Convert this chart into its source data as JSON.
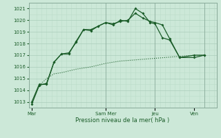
{
  "title": "",
  "xlabel": "Pression niveau de la mer( hPa )",
  "bg_color": "#cce8d8",
  "grid_color_major": "#aacebb",
  "grid_color_minor": "#bbddc8",
  "line_color": "#1a5c28",
  "ylim": [
    1012.5,
    1021.5
  ],
  "yticks": [
    1013,
    1014,
    1015,
    1016,
    1017,
    1018,
    1019,
    1020,
    1021
  ],
  "day_labels": [
    "Mar",
    "Sam Mer",
    "Jeu",
    "Ven"
  ],
  "day_positions": [
    0,
    120,
    200,
    280
  ],
  "xmin": -5,
  "xmax": 300,
  "series1_x": [
    0,
    12,
    24,
    36,
    48,
    72,
    96,
    120,
    144,
    168,
    192,
    216,
    240,
    264,
    280
  ],
  "series1_y": [
    1013.0,
    1014.4,
    1015.0,
    1015.4,
    1015.5,
    1015.8,
    1016.0,
    1016.3,
    1016.5,
    1016.6,
    1016.7,
    1016.8,
    1016.9,
    1017.0,
    1017.0
  ],
  "series2_x": [
    0,
    12,
    24,
    36,
    48,
    60,
    72,
    84,
    96,
    108,
    120,
    132,
    144,
    156,
    168,
    180,
    192,
    200,
    212,
    224,
    240,
    264,
    280
  ],
  "series2_y": [
    1013.0,
    1014.5,
    1014.5,
    1016.4,
    1017.1,
    1017.2,
    1018.1,
    1019.2,
    1019.2,
    1019.5,
    1019.8,
    1019.7,
    1019.9,
    1020.0,
    1020.6,
    1020.2,
    1019.9,
    1019.8,
    1019.6,
    1018.4,
    1016.8,
    1017.0,
    1017.0
  ],
  "series3_x": [
    0,
    12,
    24,
    36,
    48,
    60,
    72,
    84,
    96,
    108,
    120,
    132,
    144,
    156,
    168,
    180,
    192,
    200,
    212,
    224,
    240,
    264,
    280
  ],
  "series3_y": [
    1012.8,
    1014.4,
    1014.6,
    1016.4,
    1017.1,
    1017.1,
    1018.2,
    1019.2,
    1019.1,
    1019.5,
    1019.8,
    1019.6,
    1020.0,
    1019.9,
    1021.0,
    1020.6,
    1019.8,
    1019.7,
    1018.5,
    1018.3,
    1016.8,
    1016.8,
    1017.0
  ]
}
